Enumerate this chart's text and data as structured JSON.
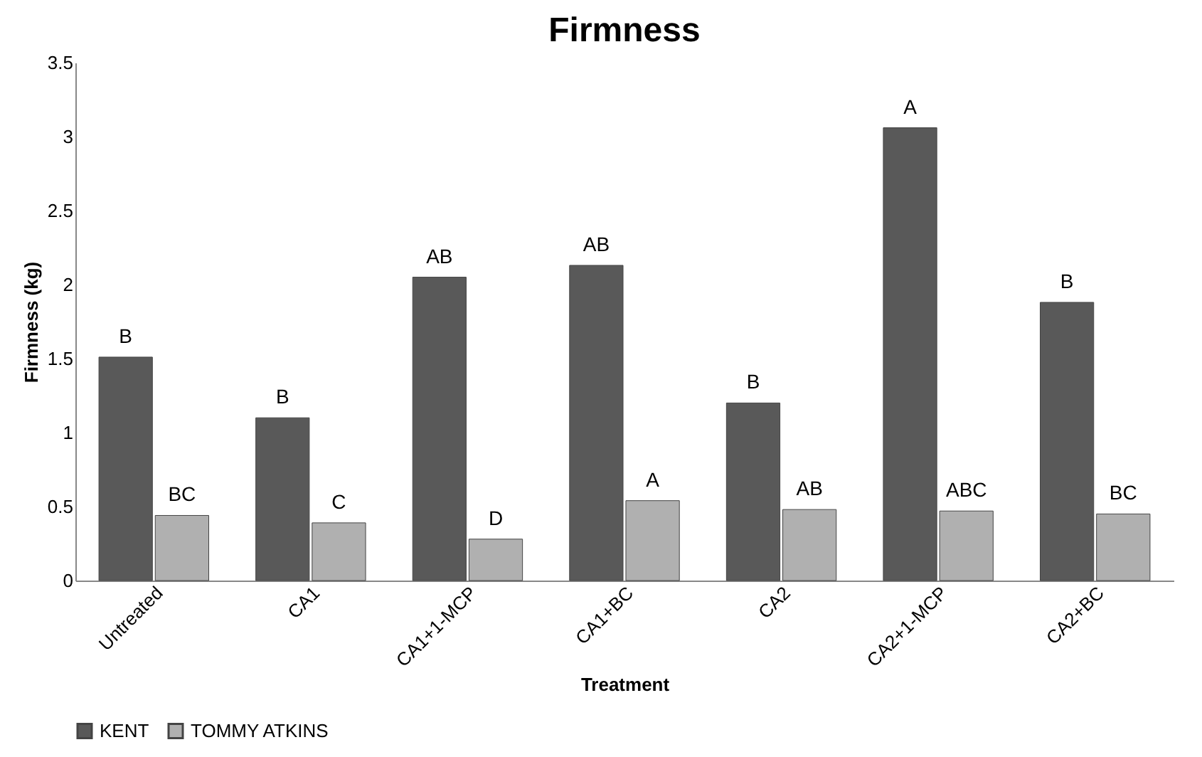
{
  "chart_data": {
    "type": "bar",
    "title": "Firmness",
    "xlabel": "Treatment",
    "ylabel": "Firmness (kg)",
    "categories": [
      "Untreated",
      "CA1",
      "CA1+1-MCP",
      "CA1+BC",
      "CA2",
      "CA2+1-MCP",
      "CA2+BC"
    ],
    "series": [
      {
        "name": "KENT",
        "color": "#595959",
        "values": [
          1.51,
          1.1,
          2.05,
          2.13,
          1.2,
          3.06,
          1.88
        ],
        "value_labels": [
          "B",
          "B",
          "AB",
          "AB",
          "B",
          "A",
          "B"
        ]
      },
      {
        "name": "TOMMY ATKINS",
        "color": "#b0b0b0",
        "values": [
          0.44,
          0.39,
          0.28,
          0.54,
          0.48,
          0.47,
          0.45
        ],
        "value_labels": [
          "BC",
          "C",
          "D",
          "A",
          "AB",
          "ABC",
          "BC"
        ]
      }
    ],
    "ylim": [
      0,
      3.5
    ],
    "yticks": [
      0,
      0.5,
      1,
      1.5,
      2,
      2.5,
      3,
      3.5
    ],
    "grid": false,
    "legend": "bottom"
  }
}
